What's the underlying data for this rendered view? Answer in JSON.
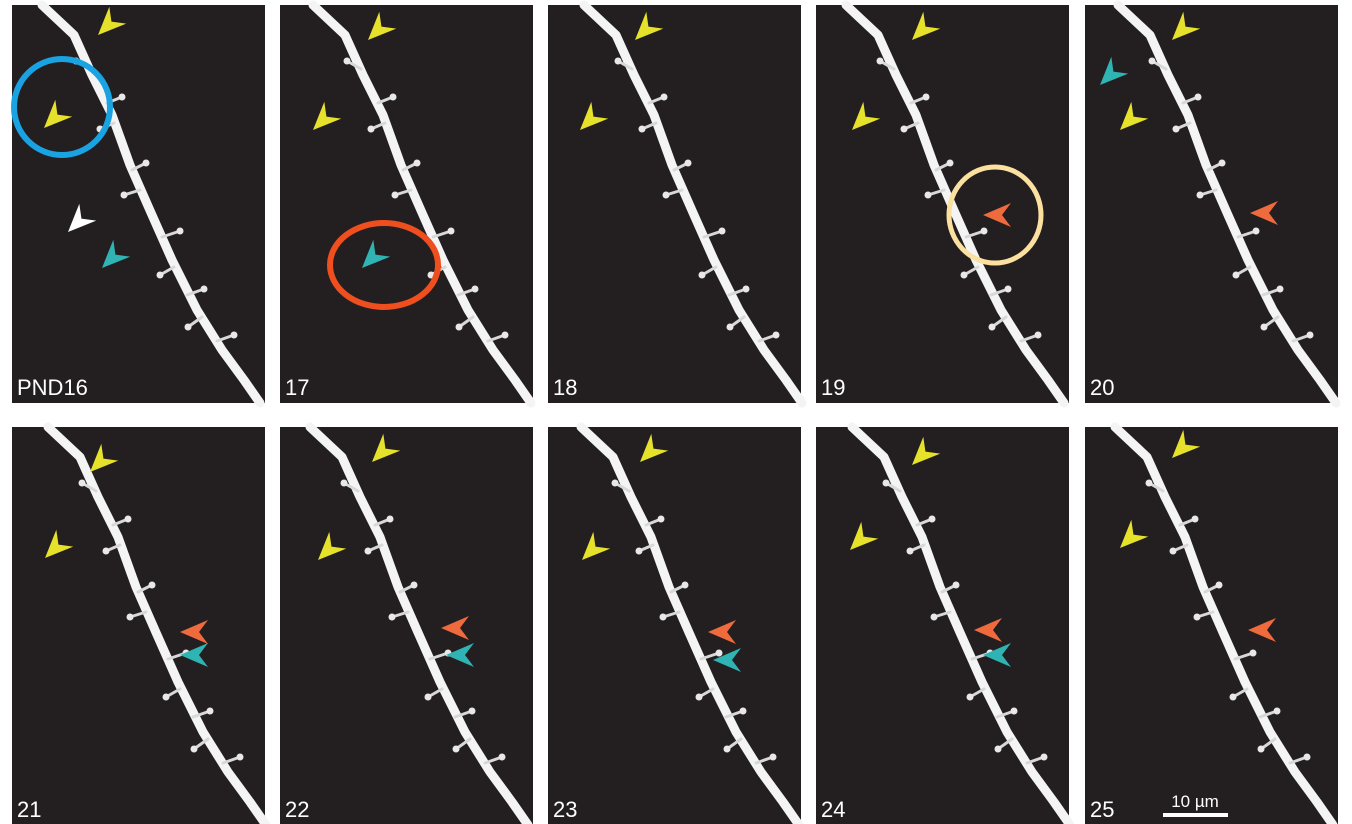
{
  "panels": [
    {
      "label": "PND16"
    },
    {
      "label": "17"
    },
    {
      "label": "18"
    },
    {
      "label": "19"
    },
    {
      "label": "20"
    },
    {
      "label": "21"
    },
    {
      "label": "22"
    },
    {
      "label": "23"
    },
    {
      "label": "24"
    },
    {
      "label": "25"
    }
  ],
  "scale_bar": {
    "label": "10 µm"
  }
}
